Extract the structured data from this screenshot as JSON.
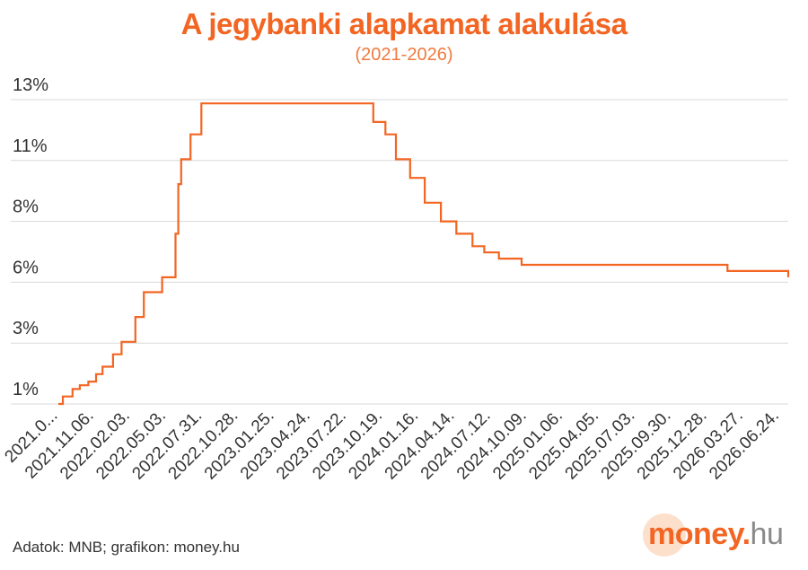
{
  "header": {
    "title": "A jegybanki alapkamat alakulása",
    "subtitle": "(2021-2026)"
  },
  "footer": {
    "source": "Adatok: MNB; grafikon: money.hu",
    "logo_word": "money",
    "logo_dot": ".",
    "logo_tld": "hu"
  },
  "colors": {
    "accent": "#f26522",
    "title": "#f26522",
    "subtitle": "#f07a3e",
    "line": "#f26522",
    "grid": "#d9d9d9",
    "axis_text": "#333333",
    "logo_word": "#f26522",
    "logo_tld": "#8a8a8a"
  },
  "chart_data": {
    "type": "line",
    "title": "A jegybanki alapkamat alakulása",
    "subtitle": "(2021-2026)",
    "xlabel": "",
    "ylabel": "",
    "grid": true,
    "legend": "none",
    "y_tick_labels": [
      "1%",
      "3%",
      "6%",
      "8%",
      "11%",
      "13%"
    ],
    "y_tick_values": [
      0.9,
      3.35,
      5.8,
      8.25,
      10.7,
      13.15
    ],
    "ylim": [
      0.9,
      13.15
    ],
    "x_tick_labels": [
      "2021.0...",
      "2021.11.06.",
      "2022.02.03.",
      "2022.05.03.",
      "2022.07.31.",
      "2022.10.28.",
      "2023.01.25.",
      "2023.04.24.",
      "2023.07.22.",
      "2023.10.19.",
      "2024.01.16.",
      "2024.04.14.",
      "2024.07.12.",
      "2024.10.09.",
      "2025.01.06.",
      "2025.04.05.",
      "2025.07.03.",
      "2025.09.30.",
      "2025.12.28.",
      "2026.03.27.",
      "2026.06.24."
    ],
    "x_tick_dates": [
      "2021-08-09",
      "2021-11-06",
      "2022-02-03",
      "2022-05-03",
      "2022-07-31",
      "2022-10-28",
      "2023-01-25",
      "2023-04-24",
      "2023-07-22",
      "2023-10-19",
      "2024-01-16",
      "2024-04-14",
      "2024-07-12",
      "2024-10-09",
      "2025-01-06",
      "2025-04-05",
      "2025-07-03",
      "2025-09-30",
      "2025-12-28",
      "2026-03-27",
      "2026-06-24"
    ],
    "xlim": [
      "2021-08-09",
      "2026-07-15"
    ],
    "series": [
      {
        "step": "post",
        "points": [
          [
            "2021-08-09",
            0.9
          ],
          [
            "2021-08-20",
            1.2
          ],
          [
            "2021-09-13",
            1.5
          ],
          [
            "2021-10-01",
            1.65
          ],
          [
            "2021-10-22",
            1.8
          ],
          [
            "2021-11-10",
            2.1
          ],
          [
            "2021-11-26",
            2.4
          ],
          [
            "2021-12-22",
            2.9
          ],
          [
            "2022-01-12",
            3.4
          ],
          [
            "2022-02-15",
            4.4
          ],
          [
            "2022-03-08",
            5.4
          ],
          [
            "2022-04-22",
            6.0
          ],
          [
            "2022-05-25",
            7.75
          ],
          [
            "2022-06-01",
            9.75
          ],
          [
            "2022-06-08",
            10.75
          ],
          [
            "2022-07-01",
            11.75
          ],
          [
            "2022-07-28",
            13.0
          ],
          [
            "2023-09-25",
            12.25
          ],
          [
            "2023-10-25",
            11.75
          ],
          [
            "2023-11-20",
            10.75
          ],
          [
            "2023-12-25",
            10.0
          ],
          [
            "2024-01-30",
            9.0
          ],
          [
            "2024-03-10",
            8.25
          ],
          [
            "2024-04-17",
            7.75
          ],
          [
            "2024-05-27",
            7.25
          ],
          [
            "2024-06-25",
            7.0
          ],
          [
            "2024-07-31",
            6.75
          ],
          [
            "2024-09-25",
            6.5
          ],
          [
            "2026-02-15",
            6.25
          ],
          [
            "2026-07-15",
            6.0
          ]
        ]
      }
    ]
  }
}
